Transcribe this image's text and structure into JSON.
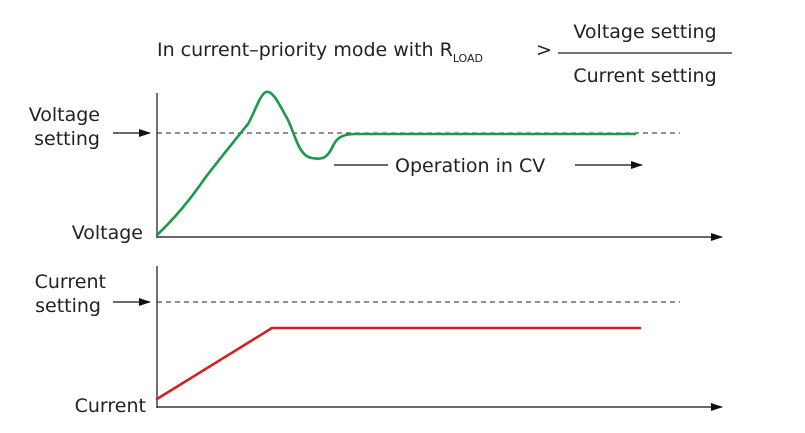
{
  "title": {
    "prefix": "In current–priority mode with R",
    "subscript": "LOAD",
    "operator": ">",
    "numerator": "Voltage setting",
    "denominator": "Current setting"
  },
  "voltage_panel": {
    "setting_label_line1": "Voltage",
    "setting_label_line2": "setting",
    "axis_label": "Voltage",
    "annotation": "Operation in CV"
  },
  "current_panel": {
    "setting_label_line1": "Current",
    "setting_label_line2": "setting",
    "axis_label": "Current"
  },
  "colors": {
    "voltage_curve": "#1a9a4a",
    "current_curve": "#d42020",
    "axes": "#111111",
    "dashed": "#222222"
  }
}
